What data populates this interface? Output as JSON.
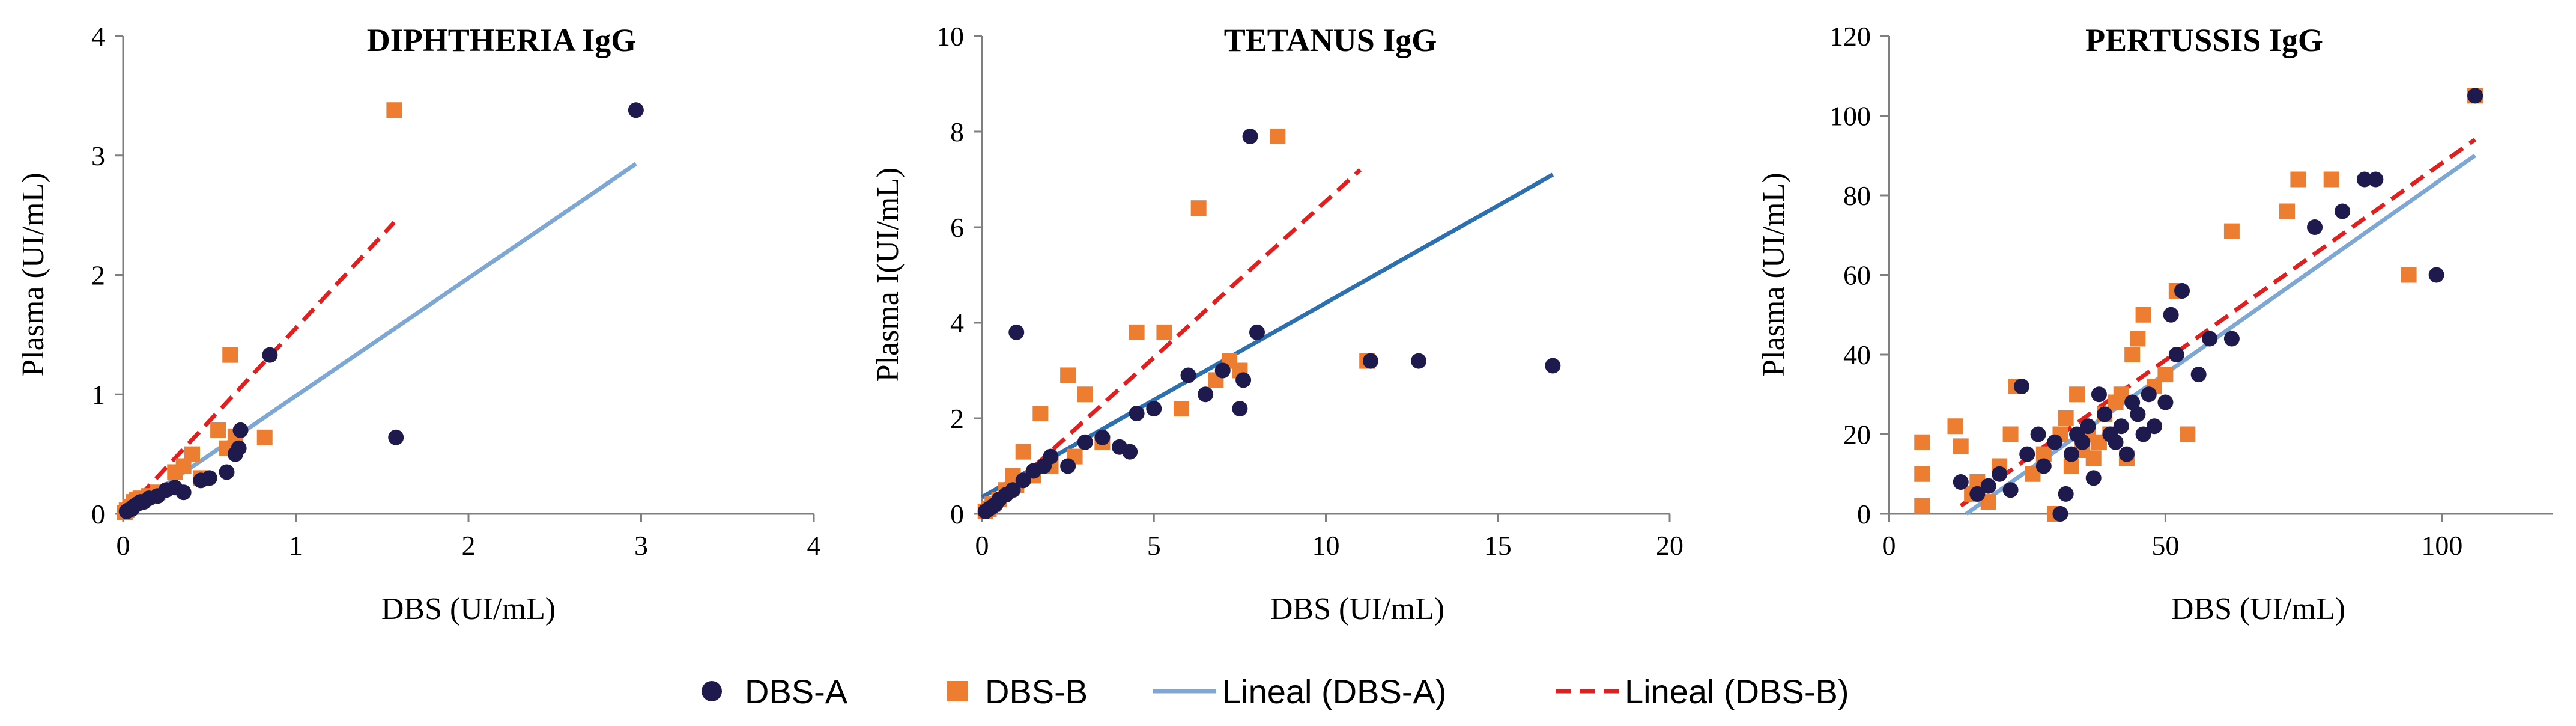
{
  "colors": {
    "dbs_a": "#1f1a4d",
    "dbs_b": "#ed7d31",
    "line_a": "#7fa7d4",
    "line_a_tetanus": "#2e6fb0",
    "line_b": "#e02020",
    "axis": "#7f7f7f"
  },
  "legend": {
    "dbs_a": "DBS-A",
    "dbs_b": "DBS-B",
    "lineal_a": "Lineal (DBS-A)",
    "lineal_b": "Lineal (DBS-B)"
  },
  "chart_data": [
    {
      "type": "scatter",
      "title": "DIPHTHERIA IgG",
      "xlabel": "DBS (UI/mL)",
      "ylabel": "Plasma (UI/mL)",
      "xlim": [
        0,
        4
      ],
      "ylim": [
        0,
        4
      ],
      "xticks": [
        "0",
        "1",
        "2",
        "3",
        "4"
      ],
      "yticks": [
        "0",
        "1",
        "2",
        "3",
        "4"
      ],
      "series": [
        {
          "name": "DBS-A",
          "points": [
            [
              0.02,
              0.02
            ],
            [
              0.03,
              0.03
            ],
            [
              0.05,
              0.04
            ],
            [
              0.06,
              0.06
            ],
            [
              0.08,
              0.08
            ],
            [
              0.1,
              0.1
            ],
            [
              0.12,
              0.1
            ],
            [
              0.15,
              0.13
            ],
            [
              0.2,
              0.15
            ],
            [
              0.25,
              0.2
            ],
            [
              0.3,
              0.22
            ],
            [
              0.35,
              0.18
            ],
            [
              0.45,
              0.28
            ],
            [
              0.5,
              0.3
            ],
            [
              0.6,
              0.35
            ],
            [
              0.65,
              0.5
            ],
            [
              0.67,
              0.55
            ],
            [
              0.68,
              0.7
            ],
            [
              0.85,
              1.33
            ],
            [
              1.58,
              0.64
            ],
            [
              2.97,
              3.38
            ]
          ]
        },
        {
          "name": "DBS-B",
          "points": [
            [
              0.01,
              0.01
            ],
            [
              0.02,
              0.03
            ],
            [
              0.04,
              0.06
            ],
            [
              0.06,
              0.1
            ],
            [
              0.08,
              0.12
            ],
            [
              0.1,
              0.13
            ],
            [
              0.15,
              0.15
            ],
            [
              0.2,
              0.18
            ],
            [
              0.3,
              0.35
            ],
            [
              0.35,
              0.4
            ],
            [
              0.4,
              0.5
            ],
            [
              0.45,
              0.3
            ],
            [
              0.55,
              0.7
            ],
            [
              0.6,
              0.55
            ],
            [
              0.62,
              1.33
            ],
            [
              0.65,
              0.65
            ],
            [
              0.82,
              0.64
            ],
            [
              1.57,
              3.38
            ]
          ]
        }
      ],
      "trendlines": [
        {
          "name": "Lineal (DBS-A)",
          "x": [
            0,
            2.97
          ],
          "y": [
            0,
            2.93
          ]
        },
        {
          "name": "Lineal (DBS-B)",
          "x": [
            0,
            1.57
          ],
          "y": [
            0,
            2.44
          ]
        }
      ]
    },
    {
      "type": "scatter",
      "title": "TETANUS IgG",
      "xlabel": "DBS (UI/mL)",
      "ylabel": "Plasma I(UI/mL)",
      "xlim": [
        0,
        20
      ],
      "ylim": [
        0,
        10
      ],
      "xticks": [
        "0",
        "5",
        "10",
        "15",
        "20"
      ],
      "yticks": [
        "0",
        "2",
        "4",
        "6",
        "8",
        "10"
      ],
      "series": [
        {
          "name": "DBS-A",
          "points": [
            [
              0.1,
              0.05
            ],
            [
              0.2,
              0.1
            ],
            [
              0.3,
              0.15
            ],
            [
              0.4,
              0.2
            ],
            [
              0.5,
              0.3
            ],
            [
              0.7,
              0.4
            ],
            [
              0.9,
              0.5
            ],
            [
              1.0,
              3.8
            ],
            [
              1.2,
              0.7
            ],
            [
              1.5,
              0.9
            ],
            [
              1.8,
              1.0
            ],
            [
              2.0,
              1.2
            ],
            [
              2.5,
              1.0
            ],
            [
              3.0,
              1.5
            ],
            [
              3.5,
              1.6
            ],
            [
              4.0,
              1.4
            ],
            [
              4.3,
              1.3
            ],
            [
              4.5,
              2.1
            ],
            [
              5.0,
              2.2
            ],
            [
              6.0,
              2.9
            ],
            [
              6.5,
              2.5
            ],
            [
              7.0,
              3.0
            ],
            [
              7.5,
              2.2
            ],
            [
              7.8,
              7.9
            ],
            [
              7.6,
              2.8
            ],
            [
              8.0,
              3.8
            ],
            [
              11.3,
              3.2
            ],
            [
              12.7,
              3.2
            ],
            [
              16.6,
              3.1
            ]
          ]
        },
        {
          "name": "DBS-B",
          "points": [
            [
              0.1,
              0.05
            ],
            [
              0.2,
              0.1
            ],
            [
              0.3,
              0.2
            ],
            [
              0.5,
              0.3
            ],
            [
              0.7,
              0.5
            ],
            [
              0.9,
              0.8
            ],
            [
              1.0,
              0.6
            ],
            [
              1.2,
              1.3
            ],
            [
              1.5,
              0.8
            ],
            [
              1.7,
              2.1
            ],
            [
              2.0,
              1.0
            ],
            [
              2.5,
              2.9
            ],
            [
              2.7,
              1.2
            ],
            [
              3.0,
              2.5
            ],
            [
              3.5,
              1.5
            ],
            [
              4.5,
              3.8
            ],
            [
              5.3,
              3.8
            ],
            [
              5.8,
              2.2
            ],
            [
              6.3,
              6.4
            ],
            [
              6.8,
              2.8
            ],
            [
              7.2,
              3.2
            ],
            [
              7.5,
              3.0
            ],
            [
              8.6,
              7.9
            ],
            [
              11.2,
              3.2
            ]
          ]
        }
      ],
      "trendlines": [
        {
          "name": "Lineal (DBS-A)",
          "x": [
            0,
            16.6
          ],
          "y": [
            0.35,
            7.1
          ]
        },
        {
          "name": "Lineal (DBS-B)",
          "x": [
            0,
            11.0
          ],
          "y": [
            0.0,
            7.2
          ]
        }
      ]
    },
    {
      "type": "scatter",
      "title": "PERTUSSIS IgG",
      "xlabel": "DBS (UI/mL)",
      "ylabel": "Plasma (UI/mL)",
      "xlim": [
        0,
        120
      ],
      "ylim": [
        0,
        120
      ],
      "xticks": [
        "0",
        "50",
        "100"
      ],
      "yticks": [
        "0",
        "20",
        "40",
        "60",
        "80",
        "100",
        "120"
      ],
      "series": [
        {
          "name": "DBS-A",
          "points": [
            [
              13,
              8
            ],
            [
              16,
              5
            ],
            [
              18,
              7
            ],
            [
              20,
              10
            ],
            [
              22,
              6
            ],
            [
              24,
              32
            ],
            [
              25,
              15
            ],
            [
              27,
              20
            ],
            [
              28,
              12
            ],
            [
              30,
              18
            ],
            [
              31,
              0
            ],
            [
              32,
              5
            ],
            [
              33,
              15
            ],
            [
              34,
              20
            ],
            [
              35,
              18
            ],
            [
              36,
              22
            ],
            [
              37,
              9
            ],
            [
              38,
              30
            ],
            [
              39,
              25
            ],
            [
              40,
              20
            ],
            [
              41,
              18
            ],
            [
              42,
              22
            ],
            [
              43,
              15
            ],
            [
              44,
              28
            ],
            [
              45,
              25
            ],
            [
              46,
              20
            ],
            [
              47,
              30
            ],
            [
              48,
              22
            ],
            [
              50,
              28
            ],
            [
              51,
              50
            ],
            [
              52,
              40
            ],
            [
              53,
              56
            ],
            [
              56,
              35
            ],
            [
              58,
              44
            ],
            [
              62,
              44
            ],
            [
              77,
              72
            ],
            [
              82,
              76
            ],
            [
              86,
              84
            ],
            [
              88,
              84
            ],
            [
              99,
              60
            ],
            [
              106,
              105
            ]
          ]
        },
        {
          "name": "DBS-B",
          "points": [
            [
              6,
              18
            ],
            [
              6,
              10
            ],
            [
              6,
              2
            ],
            [
              12,
              22
            ],
            [
              13,
              17
            ],
            [
              15,
              5
            ],
            [
              16,
              8
            ],
            [
              18,
              3
            ],
            [
              20,
              12
            ],
            [
              22,
              20
            ],
            [
              23,
              32
            ],
            [
              26,
              10
            ],
            [
              28,
              15
            ],
            [
              30,
              0
            ],
            [
              31,
              20
            ],
            [
              32,
              24
            ],
            [
              33,
              12
            ],
            [
              34,
              30
            ],
            [
              35,
              16
            ],
            [
              36,
              20
            ],
            [
              37,
              14
            ],
            [
              38,
              18
            ],
            [
              39,
              25
            ],
            [
              40,
              20
            ],
            [
              41,
              28
            ],
            [
              42,
              30
            ],
            [
              43,
              14
            ],
            [
              44,
              40
            ],
            [
              45,
              44
            ],
            [
              46,
              50
            ],
            [
              48,
              32
            ],
            [
              50,
              35
            ],
            [
              52,
              56
            ],
            [
              54,
              20
            ],
            [
              62,
              71
            ],
            [
              72,
              76
            ],
            [
              74,
              84
            ],
            [
              80,
              84
            ],
            [
              94,
              60
            ],
            [
              106,
              105
            ]
          ]
        }
      ],
      "trendlines": [
        {
          "name": "Lineal (DBS-A)",
          "x": [
            14,
            106
          ],
          "y": [
            0,
            90
          ]
        },
        {
          "name": "Lineal (DBS-B)",
          "x": [
            13,
            106
          ],
          "y": [
            2,
            94
          ]
        }
      ]
    }
  ]
}
